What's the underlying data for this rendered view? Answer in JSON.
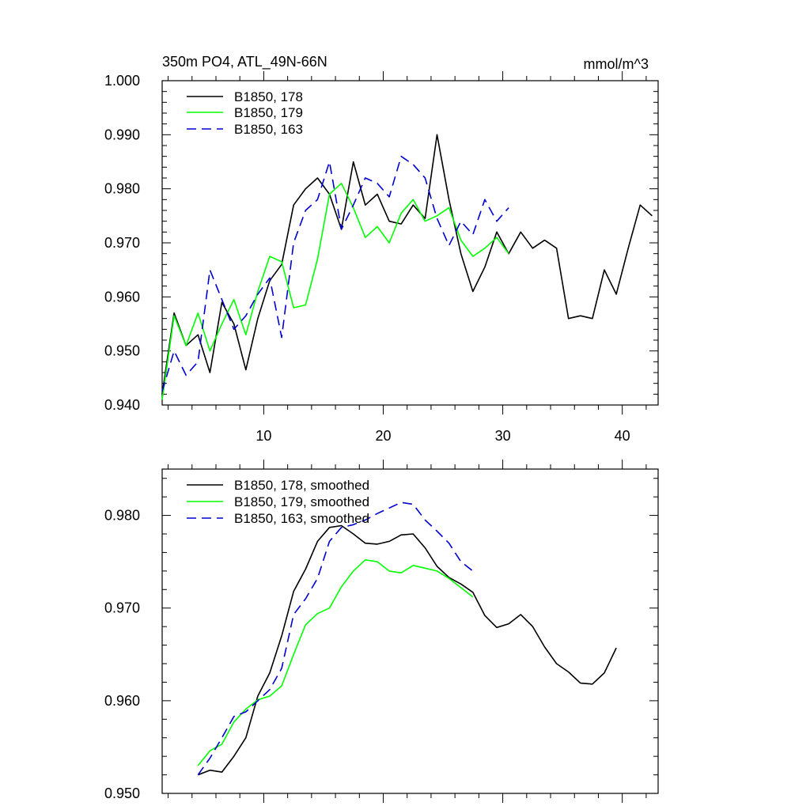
{
  "chart_data": [
    {
      "type": "line",
      "title": "350m PO4, ATL_49N-66N",
      "units_label": "mmol/m^3",
      "xlabel": "",
      "ylabel": "",
      "xlim": [
        1.5,
        43
      ],
      "ylim": [
        0.94,
        1.0
      ],
      "x_ticks": [
        10,
        20,
        30,
        40
      ],
      "x_tick_labels": [
        "10",
        "20",
        "30",
        "40"
      ],
      "y_ticks": [
        0.94,
        0.95,
        0.96,
        0.97,
        0.98,
        0.99,
        1.0
      ],
      "y_tick_labels": [
        "0.940",
        "0.950",
        "0.960",
        "0.970",
        "0.980",
        "0.990",
        "1.000"
      ],
      "legend_position": "top-left",
      "series": [
        {
          "name": "B1850, 178",
          "color": "#000000",
          "dash": "solid",
          "x": [
            1.5,
            2.5,
            3.5,
            4.5,
            5.5,
            6.5,
            7.5,
            8.5,
            9.5,
            10.5,
            11.5,
            12.5,
            13.5,
            14.5,
            15.5,
            16.5,
            17.5,
            18.5,
            19.5,
            20.5,
            21.5,
            22.5,
            23.5,
            24.5,
            25.5,
            26.5,
            27.5,
            28.5,
            29.5,
            30.5,
            31.5,
            32.5,
            33.5,
            34.5,
            35.5,
            36.5,
            37.5,
            38.5,
            39.5,
            40.5,
            41.5,
            42.5
          ],
          "values": [
            0.942,
            0.957,
            0.951,
            0.953,
            0.946,
            0.959,
            0.955,
            0.9465,
            0.956,
            0.963,
            0.966,
            0.977,
            0.98,
            0.982,
            0.979,
            0.9725,
            0.985,
            0.977,
            0.979,
            0.974,
            0.9735,
            0.977,
            0.9745,
            0.99,
            0.978,
            0.968,
            0.961,
            0.9655,
            0.972,
            0.968,
            0.972,
            0.969,
            0.9705,
            0.969,
            0.956,
            0.9565,
            0.956,
            0.965,
            0.9605,
            0.969,
            0.977,
            0.975
          ]
        },
        {
          "name": "B1850, 179",
          "color": "#00ff00",
          "dash": "solid",
          "x": [
            1.5,
            2.5,
            3.5,
            4.5,
            5.5,
            6.5,
            7.5,
            8.5,
            9.5,
            10.5,
            11.5,
            12.5,
            13.5,
            14.5,
            15.5,
            16.5,
            17.5,
            18.5,
            19.5,
            20.5,
            21.5,
            22.5,
            23.5,
            24.5,
            25.5,
            26.5,
            27.5,
            28.5,
            29.5,
            30.5
          ],
          "values": [
            0.941,
            0.9565,
            0.951,
            0.957,
            0.95,
            0.955,
            0.9595,
            0.953,
            0.961,
            0.9675,
            0.9665,
            0.958,
            0.9585,
            0.967,
            0.979,
            0.981,
            0.9765,
            0.971,
            0.973,
            0.97,
            0.9755,
            0.978,
            0.974,
            0.975,
            0.9765,
            0.9705,
            0.9675,
            0.969,
            0.971,
            0.968
          ]
        },
        {
          "name": "B1850, 163",
          "color": "#0000d0",
          "dash": "dashed",
          "x": [
            1.5,
            2.5,
            3.5,
            4.5,
            5.5,
            6.5,
            7.5,
            8.5,
            9.5,
            10.5,
            11.5,
            12.5,
            13.5,
            14.5,
            15.5,
            16.5,
            17.5,
            18.5,
            19.5,
            20.5,
            21.5,
            22.5,
            23.5,
            24.5,
            25.5,
            26.5,
            27.5,
            28.5,
            29.5,
            30.5
          ],
          "values": [
            0.9425,
            0.95,
            0.9455,
            0.948,
            0.965,
            0.9595,
            0.954,
            0.9565,
            0.9605,
            0.9635,
            0.9525,
            0.97,
            0.976,
            0.978,
            0.985,
            0.9725,
            0.977,
            0.982,
            0.981,
            0.9785,
            0.986,
            0.9845,
            0.982,
            0.9745,
            0.9695,
            0.974,
            0.9715,
            0.978,
            0.974,
            0.9765
          ]
        }
      ]
    },
    {
      "type": "line",
      "title": "",
      "xlabel": "",
      "ylabel": "",
      "xlim": [
        1.5,
        43
      ],
      "ylim": [
        0.95,
        0.985
      ],
      "x_ticks": [
        10,
        20,
        30,
        40
      ],
      "x_tick_labels": [],
      "y_ticks": [
        0.95,
        0.96,
        0.97,
        0.98
      ],
      "y_tick_labels": [
        "0.950",
        "0.960",
        "0.970",
        "0.980"
      ],
      "legend_position": "top-left",
      "series": [
        {
          "name": "B1850, 178, smoothed",
          "color": "#000000",
          "dash": "solid",
          "x": [
            4.5,
            5.5,
            6.5,
            7.5,
            8.5,
            9.5,
            10.5,
            11.5,
            12.5,
            13.5,
            14.5,
            15.5,
            16.5,
            17.5,
            18.5,
            19.5,
            20.5,
            21.5,
            22.5,
            23.5,
            24.5,
            25.5,
            26.5,
            27.5,
            28.5,
            29.5,
            30.5,
            31.5,
            32.5,
            33.5,
            34.5,
            35.5,
            36.5,
            37.5,
            38.5,
            39.5
          ],
          "values": [
            0.952,
            0.9525,
            0.9523,
            0.954,
            0.956,
            0.9605,
            0.963,
            0.967,
            0.9718,
            0.9742,
            0.9772,
            0.9787,
            0.9789,
            0.978,
            0.977,
            0.9769,
            0.9772,
            0.9779,
            0.978,
            0.9765,
            0.9745,
            0.9733,
            0.9726,
            0.9717,
            0.9692,
            0.9679,
            0.9683,
            0.9693,
            0.968,
            0.9658,
            0.964,
            0.9631,
            0.9619,
            0.9618,
            0.963,
            0.9657
          ]
        },
        {
          "name": "B1850, 179, smoothed",
          "color": "#00ff00",
          "dash": "solid",
          "x": [
            4.5,
            5.5,
            6.5,
            7.5,
            8.5,
            9.5,
            10.5,
            11.5,
            12.5,
            13.5,
            14.5,
            15.5,
            16.5,
            17.5,
            18.5,
            19.5,
            20.5,
            21.5,
            22.5,
            23.5,
            24.5,
            25.5,
            26.5,
            27.5
          ],
          "values": [
            0.953,
            0.9546,
            0.9553,
            0.9577,
            0.9591,
            0.9601,
            0.9605,
            0.9616,
            0.965,
            0.9682,
            0.9694,
            0.97,
            0.9723,
            0.974,
            0.9752,
            0.975,
            0.974,
            0.9738,
            0.9746,
            0.9743,
            0.974,
            0.9732,
            0.9722,
            0.9712
          ]
        },
        {
          "name": "B1850, 163, smoothed",
          "color": "#0000d0",
          "dash": "dashed",
          "x": [
            4.5,
            5.5,
            6.5,
            7.5,
            8.5,
            9.5,
            10.5,
            11.5,
            12.5,
            13.5,
            14.5,
            15.5,
            16.5,
            17.5,
            18.5,
            19.5,
            20.5,
            21.5,
            22.5,
            23.5,
            24.5,
            25.5,
            26.5,
            27.5
          ],
          "values": [
            0.952,
            0.9538,
            0.956,
            0.9583,
            0.9588,
            0.96,
            0.9612,
            0.9635,
            0.9693,
            0.971,
            0.9732,
            0.9772,
            0.9787,
            0.979,
            0.9795,
            0.9802,
            0.9808,
            0.9814,
            0.9812,
            0.9795,
            0.9783,
            0.977,
            0.975,
            0.974
          ]
        }
      ]
    }
  ]
}
